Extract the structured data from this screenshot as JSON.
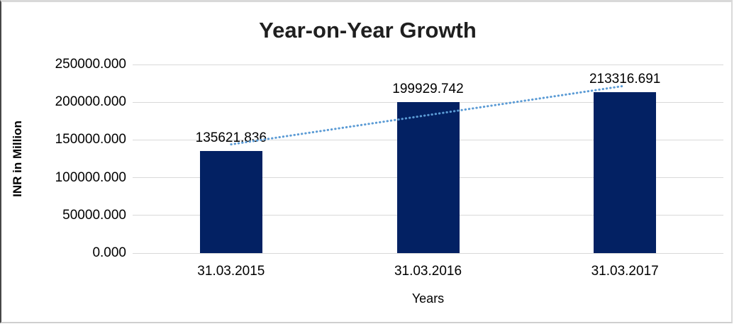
{
  "window": {
    "background": "#ffffff",
    "frame_border_left": "#474747",
    "frame_border_light": "#d9d9d9"
  },
  "chart_data": {
    "type": "bar",
    "title": "Year-on-Year Growth",
    "categories": [
      "31.03.2015",
      "31.03.2016",
      "31.03.2017"
    ],
    "values": [
      135621.836,
      199929.742,
      213316.691
    ],
    "data_labels": [
      "135621.836",
      "199929.742",
      "213316.691"
    ],
    "xlabel": "Years",
    "ylabel": "INR in Million",
    "ylim": [
      0,
      250000
    ],
    "ytick_step": 50000,
    "ytick_labels": [
      "0.000",
      "50000.000",
      "100000.000",
      "150000.000",
      "200000.000",
      "250000.000"
    ],
    "grid": true,
    "legend": "none",
    "trendline": {
      "kind": "linear",
      "dash": "dotted"
    },
    "colors": {
      "bar": "#032163",
      "trendline": "#5b9bd5",
      "gridline": "#d9d9d9",
      "text": "#000000",
      "title_text": "#1f1f1f"
    }
  }
}
